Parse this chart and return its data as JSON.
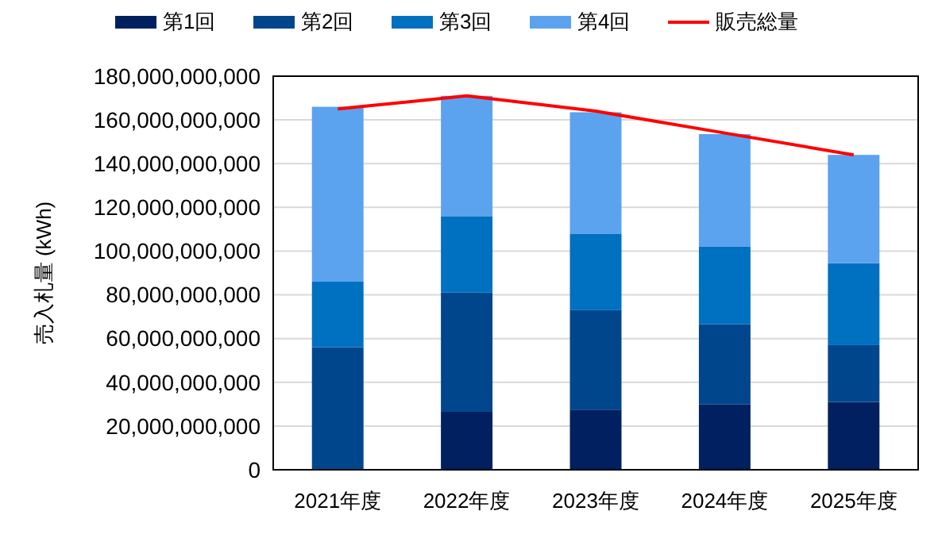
{
  "chart_data": {
    "type": "bar",
    "stacked": true,
    "ylabel": "売入札量 (kWh)",
    "categories": [
      "2021年度",
      "2022年度",
      "2023年度",
      "2024年度",
      "2025年度"
    ],
    "series": [
      {
        "name": "第1回",
        "color": "#002060",
        "values": [
          0,
          26500000000,
          27500000000,
          30000000000,
          31000000000
        ]
      },
      {
        "name": "第2回",
        "color": "#00468c",
        "values": [
          56000000000,
          54500000000,
          45500000000,
          36500000000,
          26000000000
        ]
      },
      {
        "name": "第3回",
        "color": "#0070c0",
        "values": [
          30000000000,
          35000000000,
          35000000000,
          35500000000,
          37500000000
        ]
      },
      {
        "name": "第4回",
        "color": "#5ba3ef",
        "values": [
          80000000000,
          55000000000,
          55500000000,
          51500000000,
          49500000000
        ]
      },
      {
        "name": "販売総量",
        "type": "line",
        "color": "#ff0000",
        "values": [
          165000000000,
          171000000000,
          164000000000,
          154000000000,
          144000000000
        ]
      }
    ],
    "ylim": [
      0,
      180000000000
    ],
    "yticks": [
      {
        "value": 0,
        "label": "0"
      },
      {
        "value": 20000000000,
        "label": "20,000,000,000"
      },
      {
        "value": 40000000000,
        "label": "40,000,000,000"
      },
      {
        "value": 60000000000,
        "label": "60,000,000,000"
      },
      {
        "value": 80000000000,
        "label": "80,000,000,000"
      },
      {
        "value": 100000000000,
        "label": "100,000,000,000"
      },
      {
        "value": 120000000000,
        "label": "120,000,000,000"
      },
      {
        "value": 140000000000,
        "label": "140,000,000,000"
      },
      {
        "value": 160000000000,
        "label": "160,000,000,000"
      },
      {
        "value": 180000000000,
        "label": "180,000,000,000"
      }
    ],
    "grid": "y",
    "legend": "top"
  }
}
